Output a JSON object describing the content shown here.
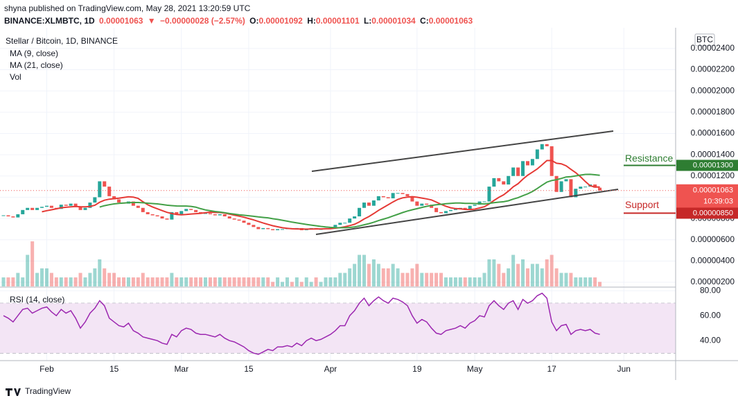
{
  "header": {
    "published": "shyna published on TradingView.com, May 28, 2021 13:20:59 UTC",
    "symbol": "BINANCE:XLMBTC, 1D",
    "price": "0.00001063",
    "arrow": "▼",
    "change": "−0.00000028 (−2.57%)",
    "o": "O:",
    "o_val": "0.00001092",
    "h": "H:",
    "h_val": "0.00001101",
    "l": "L:",
    "l_val": "0.00001034",
    "c": "C:",
    "c_val": "0.00001063"
  },
  "legend": {
    "instrument": "Stellar / Bitcoin, 1D, BINANCE",
    "ma9": "MA (9, close)",
    "ma21": "MA (21, close)",
    "vol": "Vol",
    "rsi": "RSI (14, close)"
  },
  "footer": {
    "logo": "TradingView"
  },
  "chart_data": {
    "type": "candlestick",
    "currency": "BTC",
    "ylim": [
      1.48e-06,
      2.595e-05
    ],
    "yticks": [
      {
        "value": 2e-06,
        "label": "0.00000200"
      },
      {
        "value": 4e-06,
        "label": "0.00000400"
      },
      {
        "value": 6e-06,
        "label": "0.00000600"
      },
      {
        "value": 8e-06,
        "label": "0.00000800"
      },
      {
        "value": 1e-05,
        "label": "0.00001000"
      },
      {
        "value": 1.2e-05,
        "label": "0.00001200"
      },
      {
        "value": 1.4e-05,
        "label": "0.00001400"
      },
      {
        "value": 1.6e-05,
        "label": "0.00001600"
      },
      {
        "value": 1.8e-05,
        "label": "0.00001800"
      },
      {
        "value": 2e-05,
        "label": "0.00002000"
      },
      {
        "value": 2.2e-05,
        "label": "0.00002200"
      },
      {
        "value": 2.4e-05,
        "label": "0.00002400"
      }
    ],
    "xticks": [
      {
        "value": 9,
        "label": "Feb"
      },
      {
        "value": 23,
        "label": "15"
      },
      {
        "value": 37,
        "label": "Mar"
      },
      {
        "value": 51,
        "label": "15"
      },
      {
        "value": 68,
        "label": "Apr"
      },
      {
        "value": 86,
        "label": "19"
      },
      {
        "value": 98,
        "label": "May"
      },
      {
        "value": 114,
        "label": "17"
      },
      {
        "value": 129,
        "label": "Jun"
      }
    ],
    "up_color": "#26a69a",
    "down_color": "#ef5350",
    "ma9_color": "#e53935",
    "ma21_color": "#43a047",
    "close": [
      8.3e-06,
      8.2e-06,
      8.1e-06,
      8.4e-06,
      8.8e-06,
      9e-06,
      8.8e-06,
      9e-06,
      9.1e-06,
      9.2e-06,
      9e-06,
      8.9e-06,
      9.3e-06,
      9.2e-06,
      9.4e-06,
      9.1e-06,
      8.8e-06,
      9e-06,
      9.5e-06,
      1e-05,
      1.15e-05,
      1.1e-05,
      1.01e-05,
      9.8e-06,
      9.5e-06,
      9.4e-06,
      9.6e-06,
      9.2e-06,
      9e-06,
      8.6e-06,
      8.4e-06,
      8.3e-06,
      8.2e-06,
      8e-06,
      7.9e-06,
      8.6e-06,
      8.4e-06,
      8.7e-06,
      8.9e-06,
      8.8e-06,
      8.6e-06,
      8.5e-06,
      8.5e-06,
      8.4e-06,
      8.3e-06,
      8.4e-06,
      8.2e-06,
      8e-06,
      7.9e-06,
      7.8e-06,
      7.6e-06,
      7.4e-06,
      7.2e-06,
      7e-06,
      7.1e-06,
      7e-06,
      6.9e-06,
      7e-06,
      7e-06,
      7.1e-06,
      7e-06,
      7.1e-06,
      6.9e-06,
      7e-06,
      7.1e-06,
      7e-06,
      7e-06,
      7.1e-06,
      7.2e-06,
      7.4e-06,
      7.6e-06,
      7.6e-06,
      8e-06,
      8.2e-06,
      9e-06,
      9.5e-06,
      9.2e-06,
      9.7e-06,
      1.01e-05,
      1e-05,
      9.9e-06,
      1.04e-05,
      1.04e-05,
      1.03e-05,
      1.01e-05,
      9.6e-06,
      9.2e-06,
      9.4e-06,
      9.3e-06,
      9e-06,
      8.6e-06,
      8.5e-06,
      8.7e-06,
      8.8e-06,
      8.9e-06,
      9e-06,
      8.9e-06,
      9.2e-06,
      9.3e-06,
      9.6e-06,
      9.6e-06,
      1.1e-05,
      1.18e-05,
      1.15e-05,
      1.12e-05,
      1.2e-05,
      1.28e-05,
      1.2e-05,
      1.34e-05,
      1.3e-05,
      1.36e-05,
      1.45e-05,
      1.5e-05,
      1.48e-05,
      1.2e-05,
      1.05e-05,
      1.15e-05,
      1.17e-05,
      1e-05,
      1.08e-05,
      1.1e-05,
      1.1e-05,
      1.12e-05,
      1.09e-05,
      1.063e-05
    ],
    "volume": [
      2,
      2,
      2,
      3,
      2,
      7,
      10,
      3,
      4,
      4,
      3,
      2,
      2,
      2,
      2,
      2,
      3,
      2,
      3,
      4,
      6,
      4,
      3,
      3,
      2,
      2,
      2,
      2,
      2,
      3,
      2,
      2,
      2,
      2,
      2,
      3,
      2,
      2,
      2,
      2,
      2,
      2,
      2,
      2,
      2,
      2,
      2,
      2,
      2,
      2,
      2,
      2,
      2,
      2,
      2,
      2,
      1,
      2,
      1,
      2,
      1,
      2,
      1,
      2,
      1,
      2,
      1,
      2,
      2,
      2,
      3,
      3,
      4,
      5,
      7,
      7,
      5,
      6,
      5,
      4,
      4,
      5,
      4,
      3,
      3,
      4,
      5,
      3,
      3,
      3,
      3,
      3,
      2,
      2,
      2,
      2,
      2,
      2,
      2,
      2,
      3,
      6,
      6,
      5,
      3,
      4,
      7,
      5,
      6,
      4,
      5,
      5,
      4,
      6,
      7,
      4,
      3,
      3,
      3,
      2,
      2,
      2,
      2,
      2,
      1
    ],
    "current_price": {
      "value": 1.063e-05,
      "label": "0.00001063",
      "countdown": "10:39:03"
    },
    "resistance": {
      "name": "Resistance",
      "value": 1.3e-05,
      "label": "0.00001300"
    },
    "support": {
      "name": "Support",
      "value": 8.5e-06,
      "label": "0.00000850"
    },
    "rsi": {
      "ylim": [
        24,
        84
      ],
      "bands": [
        30,
        70
      ],
      "color": "#9c27b0",
      "yticks": [
        {
          "value": 40,
          "label": "40.00"
        },
        {
          "value": 60,
          "label": "60.00"
        },
        {
          "value": 80,
          "label": "80.00"
        }
      ],
      "values": [
        60,
        58,
        55,
        60,
        65,
        66,
        62,
        64,
        66,
        67,
        63,
        60,
        65,
        62,
        64,
        58,
        50,
        55,
        62,
        66,
        72,
        68,
        58,
        55,
        52,
        51,
        54,
        48,
        46,
        43,
        42,
        41,
        40,
        38,
        37,
        45,
        43,
        48,
        50,
        49,
        46,
        45,
        45,
        44,
        43,
        45,
        42,
        40,
        39,
        37,
        35,
        32,
        30,
        29,
        31,
        33,
        32,
        35,
        35,
        36,
        35,
        38,
        36,
        40,
        42,
        40,
        41,
        43,
        45,
        48,
        52,
        52,
        60,
        64,
        70,
        74,
        68,
        72,
        75,
        72,
        70,
        74,
        73,
        71,
        68,
        60,
        54,
        57,
        55,
        50,
        46,
        45,
        48,
        49,
        50,
        52,
        50,
        54,
        56,
        60,
        59,
        68,
        72,
        68,
        65,
        70,
        72,
        65,
        73,
        70,
        72,
        76,
        78,
        74,
        55,
        48,
        52,
        53,
        45,
        48,
        49,
        48,
        49,
        46,
        45
      ]
    }
  }
}
